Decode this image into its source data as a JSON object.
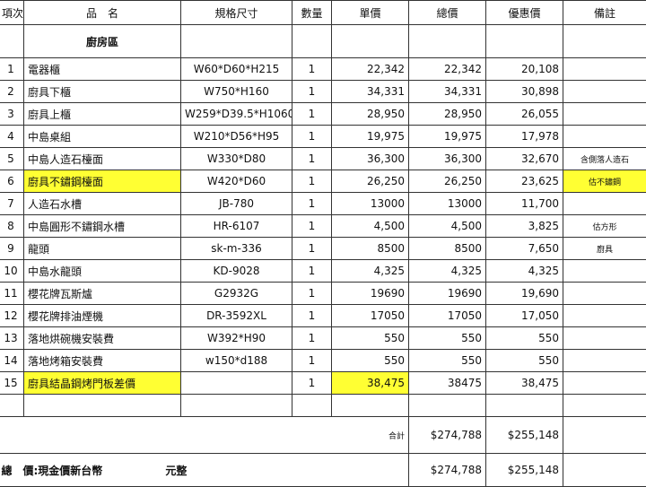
{
  "headers": [
    "項次",
    "品　名",
    "規格尺寸",
    "數量",
    "單價",
    "總價",
    "優惠價",
    "備註"
  ],
  "section_label": "廚房區",
  "items": [
    {
      "no": "1",
      "name": "電器櫃",
      "spec": "W60*D60*H215",
      "qty": "1",
      "unit": "22,342",
      "total": "22,342",
      "discount": "20,108",
      "note": ""
    },
    {
      "no": "2",
      "name": "廚具下櫃",
      "spec": "W750*H160",
      "qty": "1",
      "unit": "34,331",
      "total": "34,331",
      "discount": "30,898",
      "note": ""
    },
    {
      "no": "3",
      "name": "廚具上櫃",
      "spec": "W259*D39.5*H1060",
      "qty": "1",
      "unit": "28,950",
      "total": "28,950",
      "discount": "26,055",
      "note": ""
    },
    {
      "no": "4",
      "name": "中島桌組",
      "spec": "W210*D56*H95",
      "qty": "1",
      "unit": "19,975",
      "total": "19,975",
      "discount": "17,978",
      "note": ""
    },
    {
      "no": "5",
      "name": "中島人造石檯面",
      "spec": "W330*D80",
      "qty": "1",
      "unit": "36,300",
      "total": "36,300",
      "discount": "32,670",
      "note": "含側落人造石"
    },
    {
      "no": "6",
      "name": "廚具不鏽鋼檯面",
      "spec": "W420*D60",
      "qty": "1",
      "unit": "26,250",
      "total": "26,250",
      "discount": "23,625",
      "note": "估不鏽鋼"
    },
    {
      "no": "7",
      "name": "人造石水槽",
      "spec": "JB-780",
      "qty": "1",
      "unit": "13000",
      "total": "13000",
      "discount": "11,700",
      "note": ""
    },
    {
      "no": "8",
      "name": "中島圓形不鏽鋼水槽",
      "spec": "HR-6107",
      "qty": "1",
      "unit": "4,500",
      "total": "4,500",
      "discount": "3,825",
      "note": "估方形"
    },
    {
      "no": "9",
      "name": "龍頭",
      "spec": "sk-m-336",
      "qty": "1",
      "unit": "8500",
      "total": "8500",
      "discount": "7,650",
      "note": "廚具"
    },
    {
      "no": "10",
      "name": "中島水龍頭",
      "spec": "KD-9028",
      "qty": "1",
      "unit": "4,325",
      "total": "4,325",
      "discount": "4,325",
      "note": ""
    },
    {
      "no": "11",
      "name": "櫻花牌瓦斯爐",
      "spec": "G2932G",
      "qty": "1",
      "unit": "19690",
      "total": "19690",
      "discount": "19,690",
      "note": ""
    },
    {
      "no": "12",
      "name": "櫻花牌排油煙機",
      "spec": "DR-3592XL",
      "qty": "1",
      "unit": "17050",
      "total": "17050",
      "discount": "17,050",
      "note": ""
    },
    {
      "no": "13",
      "name": "落地烘碗機安裝費",
      "spec": "W392*H90",
      "qty": "1",
      "unit": "550",
      "total": "550",
      "discount": "550",
      "note": ""
    },
    {
      "no": "14",
      "name": "落地烤箱安裝費",
      "spec": "w150*d188",
      "qty": "1",
      "unit": "550",
      "total": "550",
      "discount": "550",
      "note": ""
    },
    {
      "no": "15",
      "name": "廚具結晶鋼烤門板差價",
      "spec": "",
      "qty": "1",
      "unit": "38,475",
      "total": "38475",
      "discount": "38,475",
      "note": ""
    }
  ],
  "subtotal": {
    "label": "合計",
    "total": "$274,788",
    "discount": "$255,148"
  },
  "grand_total": {
    "label": "總　價:現金價新台幣",
    "suffix": "元整",
    "total": "$274,788",
    "discount": "$255,148"
  },
  "highlight_color": "#ffff33"
}
